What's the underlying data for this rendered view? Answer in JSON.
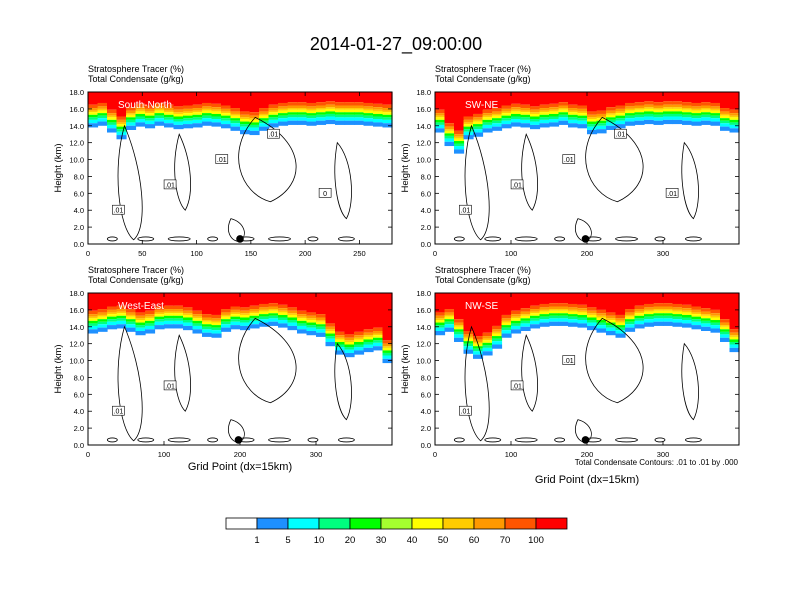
{
  "title": "2014-01-27_09:00:00",
  "field_labels": [
    "Stratosphere Tracer   (%)",
    "Total Condensate   (g/kg)"
  ],
  "ylabel": "Height (km)",
  "xlabel": "Grid Point (dx=15km)",
  "contour_note": "Total Condensate Contours: .01 to .01 by .000",
  "colors": {
    "levels": [
      "#ffffff",
      "#1e90ff",
      "#00ffff",
      "#00ff7f",
      "#00ff00",
      "#a5ff2f",
      "#ffff00",
      "#ffcc00",
      "#ff9900",
      "#ff5500",
      "#ff0000"
    ],
    "labels": [
      "1",
      "5",
      "10",
      "20",
      "30",
      "40",
      "50",
      "60",
      "70",
      "100"
    ]
  },
  "chart_data": [
    {
      "type": "heatmap",
      "panel": "South-North",
      "yticks": [
        "0.0",
        "2.0",
        "4.0",
        "6.0",
        "8.0",
        "10.0",
        "12.0",
        "14.0",
        "16.0",
        "18.0"
      ],
      "xlim": [
        0,
        280
      ],
      "xticks": [
        {
          "v": 0,
          "l": "0"
        },
        {
          "v": 50,
          "l": "50"
        },
        {
          "v": 100,
          "l": "100"
        },
        {
          "v": 150,
          "l": "150"
        },
        {
          "v": 200,
          "l": "200"
        },
        {
          "v": 250,
          "l": "250"
        }
      ],
      "marker_x": 140,
      "contour_labels": [
        ".01",
        ".01",
        ".01",
        ".01",
        "0"
      ],
      "profile": [
        15.6,
        15.8,
        15.0,
        14.2,
        15.3,
        15.7,
        15.5,
        15.8,
        15.6,
        15.4,
        15.5,
        15.6,
        15.8,
        15.7,
        15.5,
        15.2,
        14.8,
        14.7,
        15.2,
        15.6,
        15.8,
        15.9,
        15.9,
        15.8,
        15.9,
        16.0,
        15.9,
        15.9,
        15.9,
        15.8,
        15.7,
        15.6
      ]
    },
    {
      "type": "heatmap",
      "panel": "SW-NE",
      "yticks": [
        "0.0",
        "2.0",
        "4.0",
        "6.0",
        "8.0",
        "10.0",
        "12.0",
        "14.0",
        "16.0",
        "18.0"
      ],
      "xlim": [
        0,
        400
      ],
      "xticks": [
        {
          "v": 0,
          "l": "0"
        },
        {
          "v": 100,
          "l": "100"
        },
        {
          "v": 200,
          "l": "200"
        },
        {
          "v": 300,
          "l": "300"
        }
      ],
      "marker_x": 198,
      "contour_labels": [
        ".01",
        ".01",
        ".01",
        ".01",
        ".01"
      ],
      "profile": [
        15.0,
        13.4,
        12.5,
        14.2,
        14.5,
        15.0,
        15.2,
        15.5,
        15.7,
        15.6,
        15.4,
        15.6,
        15.7,
        15.9,
        15.6,
        15.5,
        14.8,
        14.9,
        15.3,
        15.5,
        15.8,
        15.9,
        16.0,
        15.9,
        16.0,
        16.0,
        15.9,
        15.8,
        15.9,
        15.8,
        15.2,
        15.0
      ]
    },
    {
      "type": "heatmap",
      "panel": "West-East",
      "yticks": [
        "0.0",
        "2.0",
        "4.0",
        "6.0",
        "8.0",
        "10.0",
        "12.0",
        "14.0",
        "16.0",
        "18.0"
      ],
      "xlim": [
        0,
        400
      ],
      "xticks": [
        {
          "v": 0,
          "l": "0"
        },
        {
          "v": 100,
          "l": "100"
        },
        {
          "v": 200,
          "l": "200"
        },
        {
          "v": 300,
          "l": "300"
        }
      ],
      "marker_x": 198,
      "contour_labels": [
        ".01",
        ".01"
      ],
      "profile": [
        15.0,
        15.2,
        15.5,
        15.6,
        15.2,
        14.8,
        15.0,
        15.5,
        15.6,
        15.6,
        15.4,
        15.0,
        14.6,
        14.5,
        15.2,
        15.5,
        15.4,
        15.6,
        15.8,
        15.9,
        15.7,
        15.4,
        15.0,
        14.8,
        14.6,
        13.5,
        12.5,
        12.2,
        12.5,
        12.8,
        13.0,
        11.5
      ]
    },
    {
      "type": "heatmap",
      "panel": "NW-SE",
      "yticks": [
        "0.0",
        "2.0",
        "4.0",
        "6.0",
        "8.0",
        "10.0",
        "12.0",
        "14.0",
        "16.0",
        "18.0"
      ],
      "xlim": [
        0,
        400
      ],
      "xticks": [
        {
          "v": 0,
          "l": "0"
        },
        {
          "v": 100,
          "l": "100"
        },
        {
          "v": 200,
          "l": "200"
        },
        {
          "v": 300,
          "l": "300"
        }
      ],
      "marker_x": 198,
      "contour_labels": [
        ".01",
        ".01",
        ".01"
      ],
      "profile": [
        14.8,
        15.2,
        14.0,
        12.6,
        12.0,
        12.4,
        13.2,
        14.5,
        15.0,
        15.3,
        15.6,
        15.8,
        15.9,
        15.9,
        15.8,
        15.7,
        15.4,
        15.1,
        14.8,
        14.5,
        15.2,
        15.6,
        15.8,
        15.9,
        15.9,
        15.8,
        15.7,
        15.5,
        15.3,
        15.1,
        14.0,
        12.8
      ]
    }
  ]
}
